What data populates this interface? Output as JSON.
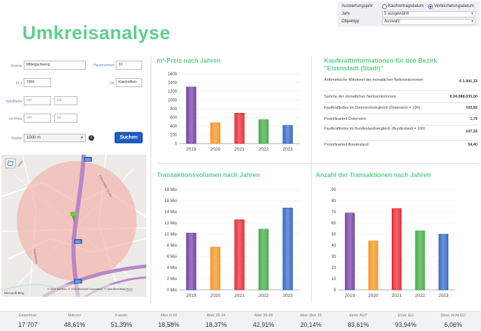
{
  "filter": {
    "auswertungsjahr_label": "Auswertungsjahr",
    "options": [
      "Kaufvertragsdatum",
      "Verbücherungsdatum"
    ],
    "selected_option": "Verbücherungsdatum",
    "jahr_label": "Jahr",
    "jahr_value": "5 ausgewählt",
    "objekttyp_label": "Objekttyp",
    "objekttyp_value": "Auswahl"
  },
  "page_title": "Umkreisanalyse",
  "form": {
    "strasse_label": "Strasse",
    "strasse_value": "Mittelgschwerg",
    "hausnummer_label": "Hausnummer",
    "hausnummer_value": "10",
    "plz_label": "PLZ",
    "plz_value": "7000",
    "ort_label": "Ort",
    "ort_value": "Kleinhöflein",
    "nutzflaeche_label": "Nutzfläche",
    "preis_label": "m²-Preis",
    "von_placeholder": "von",
    "bis_placeholder": "bis",
    "dash": "-",
    "radius_label": "Radius",
    "radius_value": "1000 m",
    "info": "i",
    "search_button": "Suchen"
  },
  "map": {
    "attribution": "© 2023 TomTom, © 2023 Microsoft Corporation, © OpenStreetMap",
    "terms": "Terms",
    "logo": "Microsoft Bing",
    "road_badges": [
      "826",
      "850",
      "850"
    ],
    "road_labels": [
      "Eisenstädter Straße",
      "Rosengasse"
    ]
  },
  "charts": {
    "price_title": "m²-Preis nach Jahren",
    "volume_title": "Transaktionsvolumen nach Jahren",
    "count_title": "Anzahl der Transaktionen nach Jahren"
  },
  "chart_data": [
    {
      "type": "bar",
      "title": "m²-Preis nach Jahren",
      "categories": [
        "2019",
        "2020",
        "2021",
        "2022",
        "2023"
      ],
      "values": [
        1300,
        480,
        700,
        550,
        420
      ],
      "colors": [
        "#7b4aa8",
        "#f59a2a",
        "#e8333a",
        "#4caf50",
        "#3b6fc9"
      ],
      "ylim": [
        0,
        1600
      ],
      "yticks": [
        "0",
        "200",
        "400",
        "600",
        "800",
        "1000",
        "1200",
        "1400",
        "1600"
      ],
      "grid": true
    },
    {
      "type": "bar",
      "title": "Transaktionsvolumen nach Jahren",
      "categories": [
        "2019",
        "2020",
        "2021",
        "2022",
        "2023"
      ],
      "values": [
        10.2,
        7.7,
        12.6,
        10.9,
        14.7
      ],
      "colors": [
        "#7b4aa8",
        "#f59a2a",
        "#e8333a",
        "#4caf50",
        "#3b6fc9"
      ],
      "ylim": [
        0,
        18
      ],
      "yticks": [
        "0 Mio",
        "2 Mio",
        "4 Mio",
        "6 Mio",
        "8 Mio",
        "10 Mio",
        "12 Mio",
        "14 Mio",
        "16 Mio",
        "18 Mio"
      ],
      "grid": true
    },
    {
      "type": "bar",
      "title": "Anzahl der Transaktionen nach Jahren",
      "categories": [
        "2019",
        "2020",
        "2021",
        "2022",
        "2023"
      ],
      "values": [
        69,
        44,
        73,
        53,
        50
      ],
      "colors": [
        "#7b4aa8",
        "#f59a2a",
        "#e8333a",
        "#4caf50",
        "#3b6fc9"
      ],
      "ylim": [
        0,
        90
      ],
      "yticks": [
        "0",
        "10",
        "20",
        "30",
        "40",
        "50",
        "60",
        "70",
        "80",
        "90"
      ],
      "grid": true
    }
  ],
  "kaufkraft": {
    "title_line1": "Kaufkraftinformationen für den Bezirk",
    "title_line2": "\"Eisenstadt (Stadt)\"",
    "rows": [
      {
        "label": "Arithmetische Mittelwert der monatlichen Nettoeinkommen",
        "value": "€ 1.941,33"
      },
      {
        "label": "Summe der monatlichen Nettoeinkommen",
        "value": "€ 24.088.035,00"
      },
      {
        "label": "Kaufkraftindex im Österreichvergleich (Österreich = 100)",
        "value": "103,92"
      },
      {
        "label": "Promillеanteil Österreich",
        "value": "1,79"
      },
      {
        "label": "Kaufkraftindex im Bundeslandvergleich (Bundesland = 100)",
        "value": "107,33"
      },
      {
        "label": "Promilleanteil Bundesland",
        "value": "54,40"
      }
    ]
  },
  "stats": [
    {
      "label": "Einwohner",
      "value": "17 707"
    },
    {
      "label": "Männer",
      "value": "48,61%"
    },
    {
      "label": "Frauen",
      "value": "51,39%"
    },
    {
      "label": "Alter 0-19",
      "value": "18,58%"
    },
    {
      "label": "Alter 20-34",
      "value": "18,37%"
    },
    {
      "label": "Alter 35-65",
      "value": "42,91%"
    },
    {
      "label": "Alter über 65",
      "value": "20,14%"
    },
    {
      "label": "Einw. AUT",
      "value": "83,61%"
    },
    {
      "label": "Einw. EU",
      "value": "93,94%"
    },
    {
      "label": "Einw. nicht EU",
      "value": "6,06%"
    }
  ]
}
